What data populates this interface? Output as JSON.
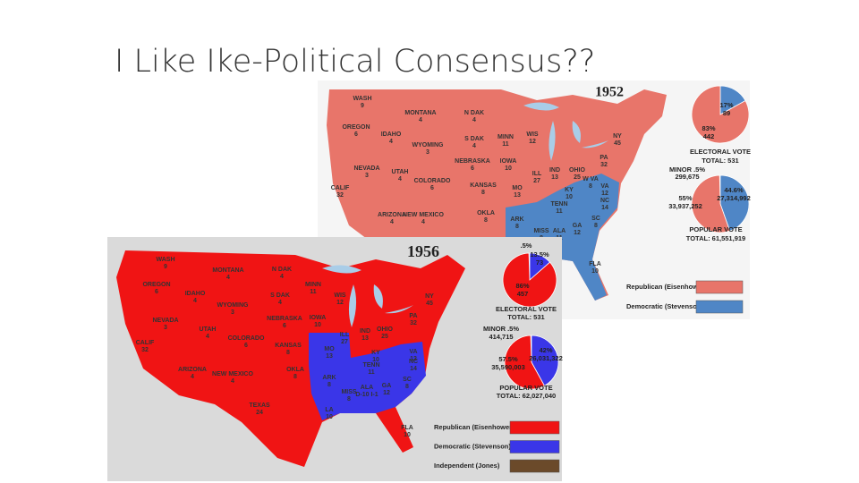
{
  "slide": {
    "title": "I Like Ike-Political Consensus??"
  },
  "maps": [
    {
      "year": "1952",
      "colors": {
        "background": "#f5f5f5",
        "rep": "#e8756a",
        "dem": "#4f86c6",
        "ind": "#6b4a2a"
      },
      "states": [
        {
          "name": "WASH",
          "ev": "9"
        },
        {
          "name": "MONTANA",
          "ev": "4"
        },
        {
          "name": "N DAK",
          "ev": "4"
        },
        {
          "name": "MINN",
          "ev": "11"
        },
        {
          "name": "OREGON",
          "ev": "6"
        },
        {
          "name": "IDAHO",
          "ev": "4"
        },
        {
          "name": "S DAK",
          "ev": "4"
        },
        {
          "name": "WYOMING",
          "ev": "3"
        },
        {
          "name": "WIS",
          "ev": "12"
        },
        {
          "name": "NEBRASKA",
          "ev": "6"
        },
        {
          "name": "IOWA",
          "ev": "10"
        },
        {
          "name": "NEVADA",
          "ev": "3"
        },
        {
          "name": "UTAH",
          "ev": "4"
        },
        {
          "name": "COLORADO",
          "ev": "6"
        },
        {
          "name": "KANSAS",
          "ev": "8"
        },
        {
          "name": "CALIF",
          "ev": "32"
        },
        {
          "name": "MO",
          "ev": "13"
        },
        {
          "name": "ILL",
          "ev": "27"
        },
        {
          "name": "IND",
          "ev": "13"
        },
        {
          "name": "OHIO",
          "ev": "25"
        },
        {
          "name": "NY",
          "ev": "45"
        },
        {
          "name": "PA",
          "ev": "32"
        },
        {
          "name": "ARIZONA",
          "ev": "4"
        },
        {
          "name": "NEW MEXICO",
          "ev": "4"
        },
        {
          "name": "OKLA",
          "ev": "8"
        },
        {
          "name": "KY",
          "ev": "10"
        },
        {
          "name": "W VA",
          "ev": "8"
        },
        {
          "name": "VA",
          "ev": "12"
        },
        {
          "name": "TENN",
          "ev": "11"
        },
        {
          "name": "NC",
          "ev": "14"
        },
        {
          "name": "ARK",
          "ev": "8"
        },
        {
          "name": "SC",
          "ev": "8"
        },
        {
          "name": "GA",
          "ev": "12"
        },
        {
          "name": "ALA",
          "ev": "11"
        },
        {
          "name": "MISS",
          "ev": "8"
        },
        {
          "name": "FLA",
          "ev": "10"
        }
      ],
      "electoral_pie": {
        "values": [
          17,
          83
        ],
        "value_labels": [
          "17%",
          "83%"
        ],
        "counts": [
          "89",
          "442"
        ]
      },
      "electoral_heading": "ELECTORAL VOTE",
      "electoral_total": "TOTAL: 531",
      "minor": "MINOR .5%",
      "minor_count": "299,675",
      "popular_pie": {
        "values": [
          44.6,
          55
        ],
        "value_labels": [
          "44.6%",
          "55%"
        ],
        "counts": [
          "27,314,992",
          "33,937,252"
        ]
      },
      "popular_heading": "POPULAR VOTE",
      "popular_total": "TOTAL: 61,551,919",
      "legend": [
        {
          "label": "Republican (Eisenhower)",
          "party": "rep"
        },
        {
          "label": "Democratic (Stevenson)",
          "party": "dem"
        }
      ]
    },
    {
      "year": "1956",
      "colors": {
        "background": "#dadada",
        "rep": "#f01414",
        "dem": "#3a36e8",
        "ind": "#6b4a2a"
      },
      "states": [
        {
          "name": "WASH",
          "ev": "9"
        },
        {
          "name": "MONTANA",
          "ev": "4"
        },
        {
          "name": "N DAK",
          "ev": "4"
        },
        {
          "name": "MINN",
          "ev": "11"
        },
        {
          "name": "OREGON",
          "ev": "6"
        },
        {
          "name": "IDAHO",
          "ev": "4"
        },
        {
          "name": "S DAK",
          "ev": "4"
        },
        {
          "name": "WYOMING",
          "ev": "3"
        },
        {
          "name": "WIS",
          "ev": "12"
        },
        {
          "name": "NEBRASKA",
          "ev": "6"
        },
        {
          "name": "IOWA",
          "ev": "10"
        },
        {
          "name": "NEVADA",
          "ev": "3"
        },
        {
          "name": "UTAH",
          "ev": "4"
        },
        {
          "name": "COLORADO",
          "ev": "6"
        },
        {
          "name": "KANSAS",
          "ev": "8"
        },
        {
          "name": "CALIF",
          "ev": "32"
        },
        {
          "name": "MO",
          "ev": "13"
        },
        {
          "name": "ILL",
          "ev": "27"
        },
        {
          "name": "IND",
          "ev": "13"
        },
        {
          "name": "OHIO",
          "ev": "25"
        },
        {
          "name": "NY",
          "ev": "45"
        },
        {
          "name": "PA",
          "ev": "32"
        },
        {
          "name": "ARIZONA",
          "ev": "4"
        },
        {
          "name": "NEW MEXICO",
          "ev": "4"
        },
        {
          "name": "OKLA",
          "ev": "8"
        },
        {
          "name": "KY",
          "ev": "10"
        },
        {
          "name": "VA",
          "ev": "12"
        },
        {
          "name": "TENN",
          "ev": "11"
        },
        {
          "name": "NC",
          "ev": "14"
        },
        {
          "name": "ARK",
          "ev": "8"
        },
        {
          "name": "SC",
          "ev": "8"
        },
        {
          "name": "GA",
          "ev": "12"
        },
        {
          "name": "ALA",
          "ev": "D-10 I-1"
        },
        {
          "name": "MISS",
          "ev": "8"
        },
        {
          "name": "TEXAS",
          "ev": "24"
        },
        {
          "name": "LA",
          "ev": "10"
        },
        {
          "name": "FLA",
          "ev": "10"
        }
      ],
      "electoral_pie": {
        "values": [
          13.5,
          86
        ],
        "value_labels": [
          "13.5%",
          "86%"
        ],
        "counts": [
          "73",
          "457"
        ],
        "minor": ".5%"
      },
      "electoral_heading": "ELECTORAL VOTE",
      "electoral_total": "TOTAL: 531",
      "minor": "MINOR .5%",
      "minor_count": "414,715",
      "popular_pie": {
        "values": [
          42,
          57.5
        ],
        "value_labels": [
          "42%",
          "57.5%"
        ],
        "counts": [
          "26,031,322",
          "35,590,003"
        ]
      },
      "popular_heading": "POPULAR VOTE",
      "popular_total": "TOTAL: 62,027,040",
      "legend": [
        {
          "label": "Republican (Eisenhower)",
          "party": "rep"
        },
        {
          "label": "Democratic (Stevenson)",
          "party": "dem"
        },
        {
          "label": "Independent (Jones)",
          "party": "ind"
        }
      ]
    }
  ]
}
